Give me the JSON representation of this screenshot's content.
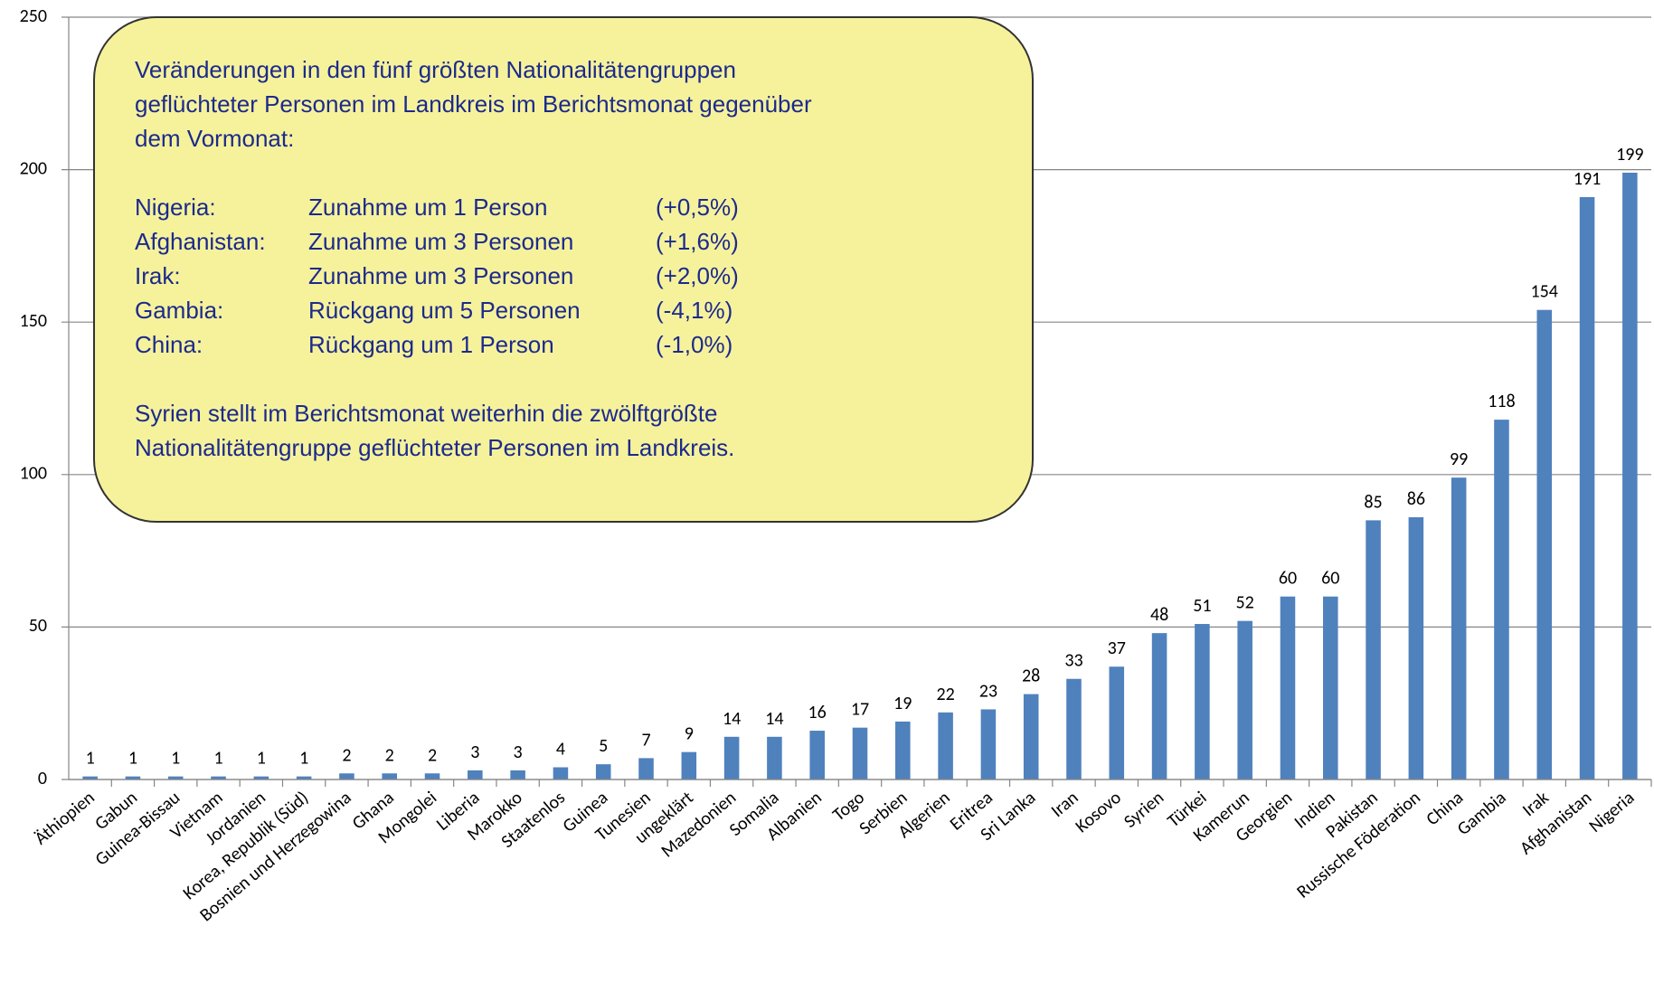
{
  "chart_data": {
    "type": "bar",
    "categories": [
      "Äthiopien",
      "Gabun",
      "Guinea-Bissau",
      "Vietnam",
      "Jordanien",
      "Korea, Republik (Süd)",
      "Bosnien und Herzegowina",
      "Ghana",
      "Mongolei",
      "Liberia",
      "Marokko",
      "Staatenlos",
      "Guinea",
      "Tunesien",
      "ungeklärt",
      "Mazedonien",
      "Somalia",
      "Albanien",
      "Togo",
      "Serbien",
      "Algerien",
      "Eritrea",
      "Sri Lanka",
      "Iran",
      "Kosovo",
      "Syrien",
      "Türkei",
      "Kamerun",
      "Georgien",
      "Indien",
      "Pakistan",
      "Russische Föderation",
      "China",
      "Gambia",
      "Irak",
      "Afghanistan",
      "Nigeria"
    ],
    "values": [
      1,
      1,
      1,
      1,
      1,
      1,
      2,
      2,
      2,
      3,
      3,
      4,
      5,
      7,
      9,
      14,
      14,
      16,
      17,
      19,
      22,
      23,
      28,
      33,
      37,
      48,
      51,
      52,
      60,
      60,
      85,
      86,
      99,
      118,
      154,
      191,
      199
    ],
    "color": "#4f81bd",
    "ylim": [
      0,
      250
    ],
    "yticks": [
      0,
      50,
      100,
      150,
      200,
      250
    ],
    "grid": true,
    "annotation": {
      "intro": [
        "Veränderungen in den fünf größten Nationalitätengruppen",
        "geflüchteter Personen im Landkreis im Berichtsmonat gegenüber",
        "dem Vormonat:"
      ],
      "rows": [
        [
          "Nigeria:",
          "Zunahme um 1 Person",
          "(+0,5%)"
        ],
        [
          "Afghanistan:",
          "Zunahme um 3 Personen",
          "(+1,6%)"
        ],
        [
          "Irak:",
          "Zunahme um 3 Personen",
          "(+2,0%)"
        ],
        [
          "Gambia:",
          "Rückgang um 5 Personen",
          "(-4,1%)"
        ],
        [
          "China:",
          "Rückgang um 1 Person",
          "(-1,0%)"
        ]
      ],
      "outro": [
        "Syrien stellt im Berichtsmonat weiterhin die zwölftgrößte",
        "Nationalitätengruppe geflüchteter Personen im Landkreis."
      ]
    }
  }
}
